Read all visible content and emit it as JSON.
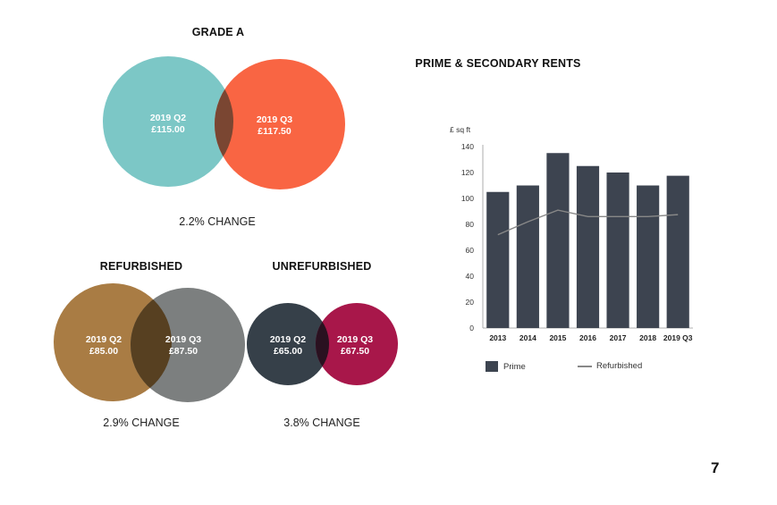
{
  "grade_a": {
    "title": "GRADE A",
    "left_label": "2019 Q2",
    "left_value": "£115.00",
    "right_label": "2019 Q3",
    "right_value": "£117.50",
    "change": "2.2% CHANGE",
    "colors": {
      "left": "#7cc7c6",
      "right": "#f96543",
      "overlap": "#7a4632"
    }
  },
  "refurbished": {
    "title": "REFURBISHED",
    "left_label": "2019 Q2",
    "left_value": "£85.00",
    "right_label": "2019 Q3",
    "right_value": "£87.50",
    "change": "2.9% CHANGE",
    "colors": {
      "left": "#a97c44",
      "right": "#7c7f7f",
      "overlap": "#574021"
    }
  },
  "unrefurbished": {
    "title": "UNREFURBISHED",
    "left_label": "2019 Q2",
    "left_value": "£65.00",
    "right_label": "2019 Q3",
    "right_value": "£67.50",
    "change": "3.8% CHANGE",
    "colors": {
      "left": "#364049",
      "right": "#a8174a",
      "overlap": "#2a1120"
    }
  },
  "chart_data": {
    "type": "bar",
    "title": "PRIME & SECONDARY RENTS",
    "ylabel": "£ sq ft",
    "xlabel": "",
    "categories": [
      "2013",
      "2014",
      "2015",
      "2016",
      "2017",
      "2018",
      "2019 Q3"
    ],
    "ylim": [
      0,
      140
    ],
    "yticks": [
      0,
      20,
      40,
      60,
      80,
      100,
      120,
      140
    ],
    "grid": false,
    "legend_position": "bottom",
    "series": [
      {
        "name": "Prime",
        "type": "bar",
        "color": "#3d4450",
        "values": [
          105,
          110,
          135,
          125,
          120,
          110,
          117.5
        ]
      },
      {
        "name": "Refurbished",
        "type": "line",
        "color": "#888888",
        "values": [
          72,
          82,
          91,
          86,
          86,
          86,
          87.5
        ]
      }
    ]
  },
  "page_number": "7"
}
